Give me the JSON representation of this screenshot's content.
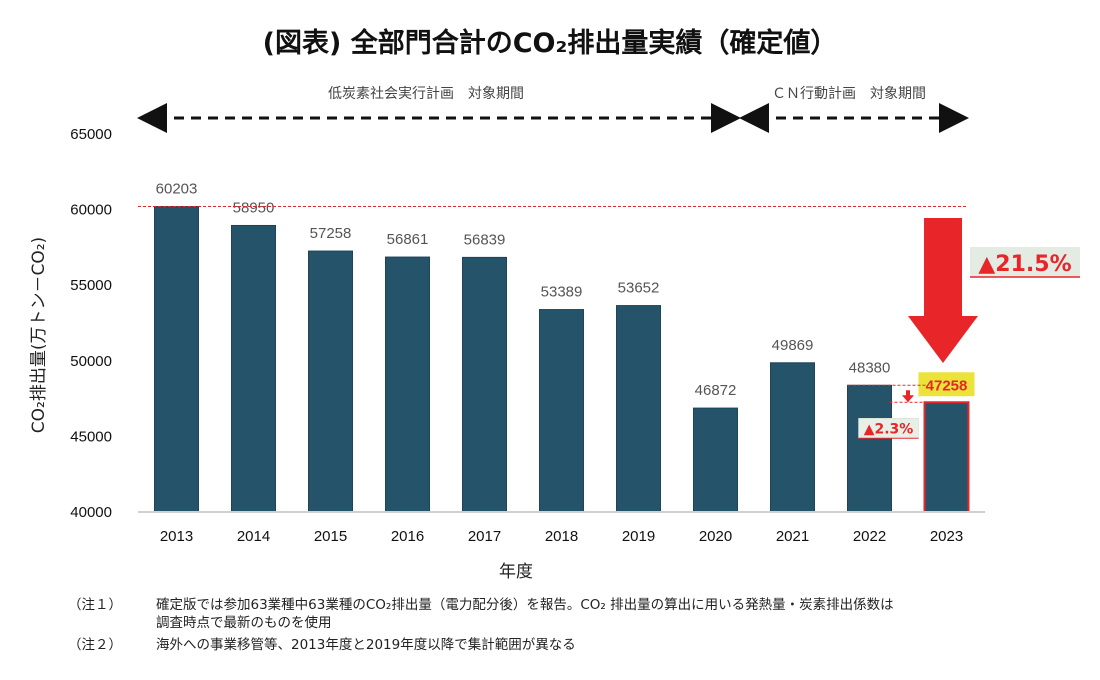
{
  "chart_data": {
    "type": "bar",
    "title": "(図表) 全部門合計のCO₂排出量実績（確定値）",
    "xlabel": "年度",
    "ylabel": "CO₂排出量(万トン－CO₂)",
    "ylim": [
      40000,
      65000
    ],
    "yticks": [
      40000,
      45000,
      50000,
      55000,
      60000,
      65000
    ],
    "categories": [
      "2013",
      "2014",
      "2015",
      "2016",
      "2017",
      "2018",
      "2019",
      "2020",
      "2021",
      "2022",
      "2023"
    ],
    "values": [
      60203,
      58950,
      57258,
      56861,
      56839,
      53389,
      53652,
      46872,
      49869,
      48380,
      47258
    ],
    "bar_color": "#25536a",
    "grid": false,
    "highlight": {
      "category": "2023",
      "label": "47258",
      "outline_color": "#e8262a",
      "label_bg": "#ebe23a"
    },
    "reference_line": {
      "value": 60203,
      "color": "#e8262a",
      "style": "dashed"
    },
    "annotations": {
      "total_change": "▲21.5%",
      "yoy_change": "▲2.3%",
      "accent_color": "#e8262a"
    },
    "periods": [
      {
        "label": "低炭素社会実行計画　対象期間",
        "from": "2013",
        "to": "2021"
      },
      {
        "label": "ＣＮ行動計画　対象期間",
        "from": "2021",
        "to": "2023"
      }
    ]
  },
  "notes": [
    {
      "tag": "（注１）",
      "lines": [
        "確定版では参加63業種中63業種のCO₂排出量（電力配分後）を報告。CO₂ 排出量の算出に用いる発熱量・炭素排出係数は",
        "調査時点で最新のものを使用"
      ]
    },
    {
      "tag": "（注２）",
      "lines": [
        "海外への事業移管等、2013年度と2019年度以降で集計範囲が異なる"
      ]
    }
  ]
}
